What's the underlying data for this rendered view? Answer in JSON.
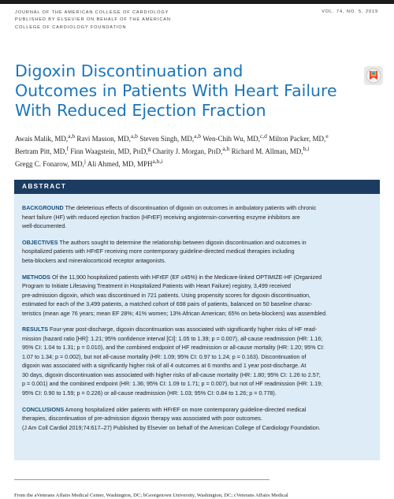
{
  "journal": {
    "line1": "JOURNAL OF THE AMERICAN COLLEGE OF CARDIOLOGY",
    "line2": "PUBLISHED BY ELSEVIER ON BEHALF OF THE AMERICAN",
    "line3": "COLLEGE OF CARDIOLOGY FOUNDATION",
    "volume": "VOL. 74, NO. 5, 2019"
  },
  "title_lines": [
    "Digoxin Discontinuation and",
    "Outcomes in Patients With Heart Failure",
    "With Reduced Ejection Fraction"
  ],
  "badge_icon": "crossmark-update-icon",
  "authors_lines": [
    "Awais Malik, MD,a,b Ravi Masson, MD,a,b Steven Singh, MD,a,b Wen-Chih Wu, MD,c,d Milton Packer, MD,e",
    "Bertram Pitt, MD,f Finn Waagstein, MD, PhD,g Charity J. Morgan, PhD,a,h Richard M. Allman, MD,b,i",
    "Gregg C. Fonarow, MD,j Ali Ahmed, MD, MPHa,b,i"
  ],
  "abstract": {
    "heading": "ABSTRACT",
    "background": {
      "label": "BACKGROUND",
      "lines": [
        "The deleterious effects of discontinuation of digoxin on outcomes in ambulatory patients with chronic",
        "heart failure (HF) with reduced ejection fraction (HFrEF) receiving angiotensin-converting enzyme inhibitors are",
        "well-documented."
      ]
    },
    "objectives": {
      "label": "OBJECTIVES",
      "lines": [
        "The authors sought to determine the relationship between digoxin discontinuation and outcomes in",
        "hospitalized patients with HFrEF receiving more contemporary guideline-directed medical therapies including",
        "beta-blockers and mineralocorticoid receptor antagonists."
      ]
    },
    "methods": {
      "label": "METHODS",
      "lines": [
        "Of the 11,900 hospitalized patients with HFrEF (EF ≤45%) in the Medicare-linked OPTIMIZE-HF (Organized",
        "Program to Initiate Lifesaving Treatment in Hospitalized Patients with Heart Failure) registry, 3,499 received",
        "pre-admission digoxin, which was discontinued in 721 patients. Using propensity scores for digoxin discontinuation,",
        "estimated for each of the 3,499 patients, a matched cohort of 698 pairs of patients, balanced on 50 baseline charac-",
        "teristics (mean age 76 years; mean EF 28%; 41% women; 13% African American; 65% on beta-blockers) was assembled."
      ]
    },
    "results": {
      "label": "RESULTS",
      "lines": [
        "Four-year post-discharge, digoxin discontinuation was associated with significantly higher risks of HF read-",
        "mission (hazard ratio [HR]: 1.21; 95% confidence interval [CI]: 1.05 to 1.39; p = 0.007), all-cause readmission (HR: 1.16;",
        "95% CI: 1.04 to 1.31; p = 0.010), and the combined endpoint of HF readmission or all-cause mortality (HR: 1.20; 95% CI:",
        "1.07 to 1.34; p = 0.002), but not all-cause mortality (HR: 1.09; 95% CI: 0.97 to 1.24; p = 0.163). Discontinuation of",
        "digoxin was associated with a significantly higher risk of all 4 outcomes at 6 months and 1 year post-discharge. At",
        "30 days, digoxin discontinuation was associated with higher risks of all-cause mortality (HR: 1.80; 95% CI: 1.26 to 2.57;",
        "p = 0.001) and the combined endpoint (HR: 1.36; 95% CI: 1.09 to 1.71; p = 0.007), but not of HF readmission (HR: 1.19;",
        "95% CI: 0.90 to 1.59; p = 0.226) or all-cause readmission (HR: 1.03; 95% CI: 0.84 to 1.26; p = 0.778)."
      ]
    },
    "conclusions": {
      "label": "CONCLUSIONS",
      "lines": [
        "Among hospitalized older patients with HFrEF on more contemporary guideline-directed medical",
        "therapies, discontinuation of pre-admission digoxin therapy was associated with poor outcomes.",
        "(J Am Coll Cardiol 2019;74:617–27) Published by Elsevier on behalf of the American College of Cardiology Foundation."
      ]
    }
  },
  "affiliation_snippet": "From the aVeterans Affairs Medical Center, Washington, DC; bGeorgetown University, Washington, DC; cVeterans Affairs Medical"
}
